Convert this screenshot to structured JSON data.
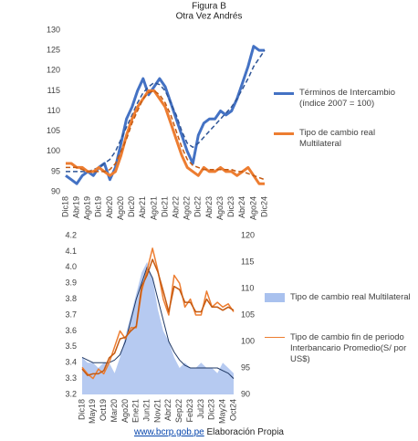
{
  "chart_data": [
    {
      "type": "line",
      "title": "Figura B",
      "subtitle": "Otra Vez Andrés",
      "grid": false,
      "legend": "right",
      "categories": [
        "Dic18",
        null,
        "Abr19",
        null,
        "Ago19",
        null,
        "Dic19",
        null,
        "Abr20",
        null,
        "Ago20",
        null,
        "Dic20",
        null,
        "Abr21",
        null,
        "Ago21",
        null,
        "Dic21",
        null,
        "Abr22",
        null,
        "Ago22",
        null,
        "Dic22",
        null,
        "Abr23",
        null,
        "Ago23",
        null,
        "Dic23",
        null,
        "Abr24",
        null,
        "Ago24",
        null,
        "Dic24"
      ],
      "ylim": [
        90,
        130
      ],
      "yticks": [
        90,
        95,
        100,
        105,
        110,
        115,
        120,
        125,
        130
      ],
      "series": [
        {
          "name": "Términos de Intercambio (índice 2007 = 100)",
          "color": "#4472c4",
          "width": 3,
          "values": [
            94,
            93,
            92,
            94,
            95,
            94,
            96,
            97,
            93,
            96,
            102,
            108,
            111,
            115,
            118,
            114,
            116,
            118,
            116,
            112,
            108,
            104,
            100,
            97,
            104,
            107,
            108,
            108,
            110,
            109,
            110,
            113,
            117,
            121,
            126,
            125,
            125
          ]
        },
        {
          "color": "#2f5597",
          "dashed": true,
          "width": 1.5,
          "values": [
            95,
            95,
            95,
            95,
            95,
            95.5,
            96,
            97,
            98,
            100,
            103,
            106,
            109,
            112,
            114.5,
            116,
            117,
            116.5,
            115,
            112,
            109,
            105,
            102,
            101,
            102,
            103.5,
            105,
            106.5,
            108,
            109.5,
            111,
            113,
            115.5,
            118,
            121,
            123,
            125
          ]
        },
        {
          "name": "Tipo de cambio real Multilateral",
          "color": "#ed7d31",
          "width": 3,
          "values": [
            97,
            97,
            96,
            96,
            95,
            95,
            96,
            95,
            94,
            95,
            99,
            104,
            108,
            111,
            113,
            115,
            115,
            113,
            111,
            107,
            103,
            99,
            96,
            95,
            94,
            96,
            95,
            95,
            96,
            95,
            95,
            94,
            95,
            96,
            94,
            92,
            92
          ]
        },
        {
          "color": "#c55a11",
          "dashed": true,
          "width": 1.5,
          "values": [
            96,
            96,
            96,
            95.5,
            95,
            95,
            95,
            95,
            95.5,
            97,
            100,
            103,
            107,
            110,
            113,
            114.5,
            115,
            114,
            112,
            109,
            105,
            101,
            98,
            96.5,
            96,
            95.5,
            95.5,
            95.5,
            95.5,
            95.5,
            95.5,
            95,
            95,
            94.5,
            94,
            93.5,
            93
          ]
        }
      ]
    },
    {
      "type": "line",
      "grid": false,
      "legend": "right",
      "categories": [
        "Dic18",
        null,
        "May19",
        null,
        "Oct19",
        null,
        "Mar20",
        null,
        "Ago20",
        null,
        "Ene21",
        null,
        "Jun21",
        null,
        "Nov21",
        null,
        "Abr22",
        null,
        "Sep22",
        null,
        "Feb23",
        null,
        "Jul23",
        null,
        "Dic23",
        null,
        "May24",
        null,
        "Oct24"
      ],
      "ylim": [
        3.2,
        4.2
      ],
      "yticks": [
        3.2,
        3.3,
        3.4,
        3.5,
        3.6,
        3.7,
        3.8,
        3.9,
        {
          "value": 4,
          "label": "4.0"
        },
        4.1,
        4.2
      ],
      "y2lim": [
        90,
        120
      ],
      "y2ticks": [
        90,
        95,
        100,
        105,
        110,
        115,
        120
      ],
      "series": [
        {
          "name": "Tipo de cambio real Multilateral",
          "color": "#a9c1ee",
          "type": "area",
          "axis": "y2",
          "values": [
            97,
            96,
            96,
            95,
            96,
            96,
            94,
            97,
            101,
            105,
            109,
            113,
            115,
            112,
            106,
            102,
            100,
            97,
            95,
            96,
            95,
            95,
            96,
            95,
            95,
            94,
            96,
            95,
            94
          ]
        },
        {
          "color": "#1f3864",
          "axis": "y2",
          "width": 1,
          "values": [
            97,
            96.5,
            96,
            96,
            96,
            96,
            96.5,
            97.5,
            100,
            104,
            108,
            111,
            114,
            112,
            108,
            104,
            100,
            98,
            96.5,
            95.5,
            95,
            95,
            95,
            95,
            95,
            95,
            94.5,
            94,
            93
          ]
        },
        {
          "name": "Tipo de cambio fin de periodo Interbancario Promedio(S/ por US$)",
          "color": "#ed7d31",
          "width": 1.5,
          "values": [
            3.37,
            3.33,
            3.3,
            3.36,
            3.33,
            3.4,
            3.5,
            3.6,
            3.55,
            3.62,
            3.62,
            3.85,
            3.98,
            4.12,
            3.98,
            3.8,
            3.7,
            3.95,
            3.9,
            3.75,
            3.8,
            3.7,
            3.7,
            3.85,
            3.75,
            3.78,
            3.75,
            3.77,
            3.72
          ]
        },
        {
          "color": "#c55a11",
          "width": 1.5,
          "values": [
            3.36,
            3.32,
            3.33,
            3.33,
            3.35,
            3.43,
            3.46,
            3.55,
            3.56,
            3.6,
            3.63,
            3.88,
            3.95,
            4.05,
            3.97,
            3.85,
            3.72,
            3.88,
            3.86,
            3.78,
            3.78,
            3.72,
            3.72,
            3.8,
            3.75,
            3.75,
            3.73,
            3.75,
            3.73
          ]
        }
      ]
    }
  ],
  "footer": {
    "link": "www.bcrp.gob.pe",
    "text": "Elaboración Propia"
  }
}
